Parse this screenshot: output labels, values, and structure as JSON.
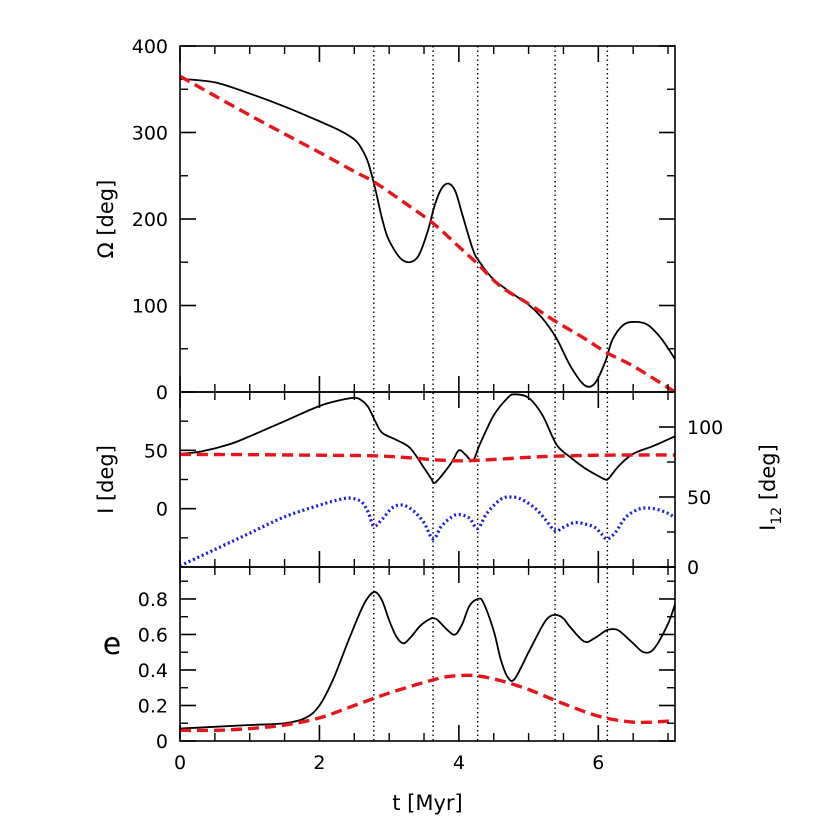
{
  "chart_data": {
    "type": "line",
    "xlabel": "t  [Myr]",
    "xlim": [
      0,
      7.1
    ],
    "xticks": [
      "0",
      "2",
      "4",
      "6"
    ],
    "colors": {
      "series1": "#000000",
      "series2": "#e8141a",
      "series3": "#1a1adc",
      "markers": "#000000"
    },
    "vlines": [
      2.78,
      3.63,
      4.27,
      5.38,
      6.13
    ],
    "panels": [
      {
        "id": "omega",
        "ylabel": "Ω [deg]",
        "ylim": [
          0,
          400
        ],
        "yticks": [
          "0",
          "100",
          "200",
          "300",
          "400"
        ],
        "series": [
          {
            "style": "solid",
            "color": "#000000",
            "x": [
              0,
              0.5,
              1.0,
              1.5,
              2.0,
              2.3,
              2.5,
              2.6,
              2.7,
              2.8,
              2.9,
              3.0,
              3.2,
              3.4,
              3.55,
              3.65,
              3.75,
              3.85,
              3.95,
              4.05,
              4.2,
              4.3,
              4.5,
              4.8,
              5.0,
              5.2,
              5.4,
              5.6,
              5.8,
              5.95,
              6.1,
              6.2,
              6.35,
              6.5,
              6.7,
              6.9,
              7.1
            ],
            "y": [
              362,
              358,
              345,
              330,
              313,
              302,
              292,
              282,
              265,
              235,
              200,
              175,
              152,
              155,
              185,
              215,
              235,
              241,
              232,
              205,
              165,
              150,
              130,
              112,
              101,
              85,
              62,
              30,
              8,
              10,
              35,
              60,
              77,
              81,
              78,
              62,
              38
            ]
          },
          {
            "style": "dashed",
            "color": "#e8141a",
            "x": [
              0,
              1,
              2,
              2.5,
              2.78,
              3.2,
              3.63,
              4.0,
              4.27,
              4.6,
              5.0,
              5.38,
              5.8,
              6.13,
              6.5,
              7.1
            ],
            "y": [
              365,
              320,
              277,
              255,
              243,
              220,
              195,
              168,
              148,
              122,
              102,
              82,
              62,
              45,
              30,
              0
            ]
          }
        ]
      },
      {
        "id": "inclination",
        "ylabel": "I [deg]",
        "ylim": [
          -50,
          100
        ],
        "yticks": [
          "50",
          "0"
        ],
        "ylabel_right": "I12 [deg]",
        "yticks_right": [
          "100",
          "50",
          "0"
        ],
        "series": [
          {
            "style": "solid",
            "color": "#000000",
            "x": [
              0,
              0.3,
              0.7,
              1.0,
              1.5,
              2.0,
              2.3,
              2.5,
              2.6,
              2.7,
              2.8,
              2.9,
              3.1,
              3.3,
              3.5,
              3.6,
              3.65,
              3.75,
              3.9,
              4.0,
              4.1,
              4.2,
              4.3,
              4.5,
              4.7,
              4.8,
              5.0,
              5.2,
              5.4,
              5.6,
              5.8,
              6.0,
              6.1,
              6.15,
              6.3,
              6.5,
              6.8,
              7.1
            ],
            "y": [
              47,
              49,
              55,
              62,
              75,
              88,
              93,
              95,
              93,
              87,
              75,
              65,
              59,
              52,
              35,
              26,
              22,
              28,
              40,
              50,
              46,
              41,
              55,
              80,
              95,
              98,
              95,
              80,
              55,
              44,
              35,
              28,
              25,
              26,
              37,
              47,
              54,
              62
            ]
          },
          {
            "style": "dashed",
            "color": "#e8141a",
            "x": [
              0,
              1,
              2,
              2.78,
              3.2,
              3.63,
              4.0,
              4.27,
              4.6,
              5.0,
              5.38,
              6.0,
              6.5,
              7.1
            ],
            "y": [
              46.5,
              46.3,
              45.8,
              45.3,
              44,
              42,
              41,
              41.5,
              42.5,
              44,
              45,
              45.8,
              46,
              46
            ]
          },
          {
            "style": "dotted",
            "color": "#1a1adc",
            "x": [
              0,
              0.5,
              1.0,
              1.5,
              2.0,
              2.3,
              2.45,
              2.6,
              2.7,
              2.78,
              2.9,
              3.05,
              3.2,
              3.35,
              3.5,
              3.63,
              3.75,
              3.9,
              4.0,
              4.15,
              4.27,
              4.4,
              4.6,
              4.75,
              4.9,
              5.1,
              5.25,
              5.38,
              5.5,
              5.65,
              5.8,
              5.95,
              6.05,
              6.13,
              6.25,
              6.4,
              6.6,
              6.8,
              7.0,
              7.1
            ],
            "y": [
              -49,
              -35,
              -21,
              -7,
              3,
              8,
              9,
              6,
              -3,
              -15,
              -9,
              1,
              3,
              -2,
              -12,
              -26,
              -15,
              -7,
              -5,
              -8,
              -17,
              -4,
              8,
              10,
              8,
              0,
              -10,
              -19,
              -16,
              -12,
              -13,
              -16,
              -22,
              -26,
              -20,
              -7,
              0,
              0,
              -4,
              -8
            ]
          }
        ]
      },
      {
        "id": "eccentricity",
        "ylabel": "e",
        "ylim": [
          0,
          0.98
        ],
        "yticks": [
          "0",
          "0.2",
          "0.4",
          "0.6",
          "0.8"
        ],
        "series": [
          {
            "style": "solid",
            "color": "#000000",
            "x": [
              0,
              0.5,
              1.0,
              1.5,
              1.8,
              2.0,
              2.2,
              2.4,
              2.6,
              2.7,
              2.8,
              2.9,
              3.0,
              3.1,
              3.2,
              3.3,
              3.45,
              3.6,
              3.65,
              3.7,
              3.85,
              3.95,
              4.05,
              4.15,
              4.27,
              4.35,
              4.5,
              4.6,
              4.7,
              4.8,
              5.0,
              5.2,
              5.3,
              5.4,
              5.5,
              5.6,
              5.8,
              5.95,
              6.1,
              6.2,
              6.3,
              6.5,
              6.65,
              6.8,
              7.0,
              7.1
            ],
            "y": [
              0.07,
              0.08,
              0.09,
              0.1,
              0.13,
              0.2,
              0.35,
              0.55,
              0.74,
              0.81,
              0.84,
              0.79,
              0.68,
              0.59,
              0.55,
              0.58,
              0.65,
              0.69,
              0.69,
              0.68,
              0.62,
              0.6,
              0.66,
              0.76,
              0.8,
              0.78,
              0.62,
              0.46,
              0.36,
              0.35,
              0.5,
              0.65,
              0.7,
              0.71,
              0.69,
              0.64,
              0.56,
              0.58,
              0.62,
              0.63,
              0.62,
              0.55,
              0.5,
              0.52,
              0.66,
              0.77
            ]
          },
          {
            "style": "dashed",
            "color": "#e8141a",
            "x": [
              0,
              0.5,
              1.0,
              1.5,
              2.0,
              2.5,
              3.0,
              3.5,
              3.8,
              4.1,
              4.3,
              4.6,
              5.0,
              5.5,
              6.0,
              6.4,
              6.7,
              7.1
            ],
            "y": [
              0.06,
              0.06,
              0.07,
              0.09,
              0.13,
              0.2,
              0.27,
              0.33,
              0.36,
              0.37,
              0.365,
              0.34,
              0.29,
              0.21,
              0.14,
              0.11,
              0.105,
              0.115
            ]
          }
        ]
      }
    ]
  }
}
